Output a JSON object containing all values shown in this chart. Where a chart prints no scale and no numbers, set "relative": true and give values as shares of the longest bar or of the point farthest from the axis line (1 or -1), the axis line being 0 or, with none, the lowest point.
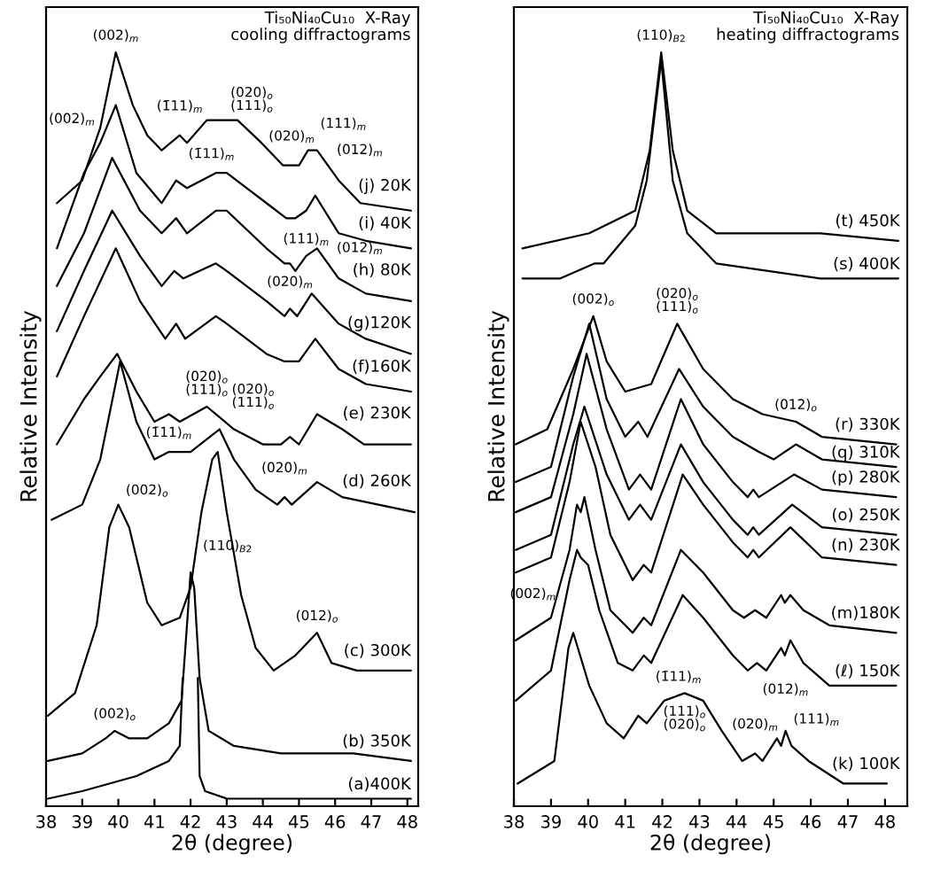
{
  "chart_data": [
    {
      "type": "line",
      "title": "Ti₅₀Ni₄₀Cu₁₀  X-Ray\ncooling diffractograms",
      "xlabel": "2θ (degree)",
      "ylabel": "Relative Intensity",
      "relative": true,
      "xlim": [
        38,
        48.3
      ],
      "xticks": [
        38,
        39,
        40,
        41,
        42,
        43,
        44,
        45,
        46,
        47,
        48
      ],
      "series": [
        {
          "name": "(j) 20K",
          "color": "#000000",
          "x": [
            38.3,
            39.0,
            39.5,
            39.93,
            40.4,
            40.8,
            41.2,
            41.7,
            41.9,
            42.45,
            42.9,
            43.3,
            43.96,
            44.56,
            44.7,
            44.8,
            45.0,
            45.25,
            45.5,
            46.1,
            46.7,
            48.1
          ],
          "values": [
            0.8,
            0.83,
            0.9,
            1.0,
            0.93,
            0.89,
            0.87,
            0.89,
            0.88,
            0.91,
            0.91,
            0.91,
            0.88,
            0.85,
            0.85,
            0.85,
            0.85,
            0.87,
            0.87,
            0.83,
            0.8,
            0.79
          ]
        },
        {
          "name": "(i) 40K",
          "color": "#000000",
          "x": [
            38.3,
            39.05,
            39.5,
            39.93,
            40.5,
            41.2,
            41.6,
            41.9,
            42.7,
            43.0,
            44.1,
            44.65,
            44.75,
            44.9,
            45.2,
            45.45,
            46.1,
            46.85,
            48.1
          ],
          "values": [
            0.74,
            0.84,
            0.88,
            0.93,
            0.84,
            0.8,
            0.83,
            0.82,
            0.84,
            0.84,
            0.8,
            0.78,
            0.78,
            0.78,
            0.79,
            0.81,
            0.76,
            0.75,
            0.74
          ]
        },
        {
          "name": "(h) 80K",
          "color": "#000000",
          "x": [
            38.3,
            39.05,
            39.83,
            40.6,
            41.2,
            41.6,
            41.9,
            42.7,
            43.0,
            44.1,
            44.6,
            44.75,
            44.9,
            45.2,
            45.5,
            46.1,
            46.85,
            48.1
          ],
          "values": [
            0.69,
            0.76,
            0.86,
            0.79,
            0.76,
            0.78,
            0.76,
            0.79,
            0.79,
            0.74,
            0.72,
            0.72,
            0.71,
            0.73,
            0.74,
            0.7,
            0.68,
            0.67
          ]
        },
        {
          "name": "(g)120K",
          "color": "#000000",
          "x": [
            38.3,
            39.05,
            39.83,
            40.6,
            41.2,
            41.55,
            41.8,
            42.7,
            43.0,
            44.1,
            44.6,
            44.75,
            44.95,
            45.35,
            46.1,
            46.85,
            48.1
          ],
          "values": [
            0.63,
            0.71,
            0.79,
            0.73,
            0.69,
            0.71,
            0.7,
            0.72,
            0.71,
            0.67,
            0.65,
            0.66,
            0.65,
            0.68,
            0.64,
            0.62,
            0.6
          ]
        },
        {
          "name": "(f)160K",
          "color": "#000000",
          "x": [
            38.3,
            39.05,
            39.93,
            40.6,
            41.3,
            41.6,
            41.85,
            42.7,
            43.0,
            44.1,
            44.6,
            44.8,
            45.0,
            45.45,
            46.1,
            46.85,
            48.1
          ],
          "values": [
            0.57,
            0.65,
            0.74,
            0.67,
            0.62,
            0.64,
            0.62,
            0.65,
            0.64,
            0.6,
            0.59,
            0.59,
            0.59,
            0.62,
            0.58,
            0.56,
            0.55
          ]
        },
        {
          "name": "(e) 230K",
          "color": "#000000",
          "x": [
            38.3,
            39.05,
            39.5,
            39.97,
            40.5,
            41.0,
            41.4,
            41.7,
            42.45,
            43.2,
            44.0,
            44.5,
            44.75,
            45.0,
            45.5,
            46.2,
            46.8,
            48.1
          ],
          "values": [
            0.48,
            0.54,
            0.57,
            0.6,
            0.55,
            0.51,
            0.52,
            0.51,
            0.53,
            0.5,
            0.48,
            0.48,
            0.49,
            0.48,
            0.52,
            0.5,
            0.48,
            0.48
          ]
        },
        {
          "name": "(d) 260K",
          "color": "#000000",
          "x": [
            38.15,
            39.0,
            39.5,
            40.05,
            40.5,
            41.0,
            41.4,
            41.6,
            42.0,
            42.8,
            43.2,
            43.8,
            44.4,
            44.6,
            44.8,
            45.5,
            46.2,
            48.2
          ],
          "values": [
            0.38,
            0.4,
            0.46,
            0.59,
            0.51,
            0.46,
            0.47,
            0.47,
            0.47,
            0.5,
            0.46,
            0.42,
            0.4,
            0.41,
            0.4,
            0.43,
            0.41,
            0.39
          ]
        },
        {
          "name": "(c) 300K",
          "color": "#000000",
          "x": [
            38.05,
            38.8,
            39.4,
            39.75,
            40.0,
            40.3,
            40.8,
            41.2,
            41.7,
            42.0,
            42.3,
            42.6,
            42.75,
            43.0,
            43.4,
            43.8,
            44.3,
            44.9,
            45.5,
            45.9,
            46.6,
            48.1
          ],
          "values": [
            0.12,
            0.15,
            0.24,
            0.37,
            0.4,
            0.37,
            0.27,
            0.24,
            0.25,
            0.29,
            0.39,
            0.46,
            0.47,
            0.39,
            0.28,
            0.21,
            0.18,
            0.2,
            0.23,
            0.19,
            0.18,
            0.18
          ]
        },
        {
          "name": "(b) 350K",
          "color": "#000000",
          "x": [
            38.05,
            39.0,
            39.65,
            39.9,
            40.3,
            40.8,
            41.4,
            41.75,
            41.9,
            42.0,
            42.1,
            42.25,
            42.5,
            43.2,
            44.5,
            45.5,
            46.5,
            48.1
          ],
          "values": [
            0.06,
            0.07,
            0.09,
            0.1,
            0.09,
            0.09,
            0.11,
            0.14,
            0.24,
            0.31,
            0.29,
            0.17,
            0.1,
            0.08,
            0.07,
            0.07,
            0.07,
            0.06
          ]
        },
        {
          "name": "(a)400K",
          "color": "#000000",
          "x": [
            38.05,
            39.0,
            40.5,
            41.4,
            41.7,
            41.78,
            42.0,
            42.2,
            42.25,
            42.4,
            43.0,
            44.0,
            48.1
          ],
          "values": [
            0.01,
            0.02,
            0.04,
            0.06,
            0.08,
            0.17,
            null,
            0.17,
            0.04,
            0.02,
            0.01,
            0.01,
            0.01
          ]
        }
      ],
      "annotations": [
        {
          "text": "(002)$_{m}$",
          "x": 39.93,
          "y": 1.0
        },
        {
          "text": "(1̄11)$_{m}$",
          "x": 41.7,
          "y": 0.89
        },
        {
          "text": "(020)$_{o}$\n(111)$_{o}$",
          "x": 42.9,
          "y": 0.91
        },
        {
          "text": "(020)$_{m}$",
          "x": 44.8,
          "y": 0.85
        },
        {
          "text": "(111)$_{m}$",
          "x": 45.25,
          "y": 0.87
        },
        {
          "text": "(012)$_{m}$",
          "x": 45.5,
          "y": 0.87
        },
        {
          "text": "(002)$_{m}$",
          "x": 39.83,
          "y": 0.86
        },
        {
          "text": "(1̄11)$_{m}$",
          "x": 41.6,
          "y": 0.83
        },
        {
          "text": "(020)$_{m}$",
          "x": 44.75,
          "y": 0.72
        },
        {
          "text": "(111)$_{m}$",
          "x": 45.2,
          "y": 0.73
        },
        {
          "text": "(012)$_{m}$",
          "x": 45.5,
          "y": 0.74
        },
        {
          "text": "(020)$_{o}$\n(111)$_{o}$",
          "x": 42.45,
          "y": 0.53
        },
        {
          "text": "(1̄11)$_{m}$",
          "x": 41.4,
          "y": 0.52
        },
        {
          "text": "(020)$_{o}$\n(111)$_{o}$",
          "x": 42.8,
          "y": 0.5
        },
        {
          "text": "(020)$_{m}$",
          "x": 44.6,
          "y": 0.41
        },
        {
          "text": "(002)$_{o}$",
          "x": 40.0,
          "y": 0.4
        },
        {
          "text": "(110)$_{B2}$",
          "x": 42.0,
          "y": 0.31
        },
        {
          "text": "(012)$_{o}$",
          "x": 45.5,
          "y": 0.23
        },
        {
          "text": "(002)$_{o}$",
          "x": 39.9,
          "y": 0.1
        }
      ]
    },
    {
      "type": "line",
      "title": "Ti₅₀Ni₄₀Cu₁₀  X-Ray\nheating diffractograms",
      "xlabel": "2θ (degree)",
      "ylabel": "Relative Intensity",
      "relative": true,
      "xlim": [
        38,
        48.6
      ],
      "xticks": [
        38,
        39,
        40,
        41,
        42,
        43,
        44,
        45,
        46,
        47,
        48
      ],
      "series": [
        {
          "name": "(t) 450K",
          "color": "#000000",
          "x": [
            38.23,
            40.03,
            41.27,
            41.66,
            41.97,
            42.28,
            42.67,
            43.45,
            46.26,
            48.36
          ],
          "values": [
            0.74,
            0.76,
            0.79,
            0.87,
            1.0,
            0.87,
            0.79,
            0.76,
            0.76,
            0.75
          ]
        },
        {
          "name": "(s) 400K",
          "color": "#000000",
          "x": [
            38.23,
            39.25,
            40.18,
            40.42,
            41.27,
            41.58,
            41.97,
            42.28,
            42.67,
            43.45,
            46.26,
            48.36
          ],
          "values": [
            0.7,
            0.7,
            0.72,
            0.72,
            0.77,
            0.83,
            0.99,
            0.83,
            0.76,
            0.72,
            0.7,
            0.7
          ]
        },
        {
          "name": "(r) 330K",
          "color": "#000000",
          "x": [
            38.05,
            38.9,
            39.6,
            40.14,
            40.5,
            41.0,
            41.7,
            42.4,
            43.1,
            43.9,
            44.7,
            45.6,
            46.3,
            48.3
          ],
          "values": [
            0.48,
            0.5,
            0.58,
            0.65,
            0.59,
            0.55,
            0.56,
            0.64,
            0.58,
            0.54,
            0.52,
            0.51,
            0.49,
            0.48
          ]
        },
        {
          "name": "(q) 310K",
          "color": "#000000",
          "x": [
            38.05,
            39.0,
            39.6,
            40.03,
            40.5,
            41.0,
            41.35,
            41.6,
            42.45,
            43.1,
            43.9,
            44.6,
            45.0,
            45.6,
            46.3,
            48.3
          ],
          "values": [
            0.43,
            0.45,
            0.57,
            0.64,
            0.54,
            0.49,
            0.51,
            0.49,
            0.58,
            0.53,
            0.49,
            0.47,
            0.46,
            0.48,
            0.46,
            0.45
          ]
        },
        {
          "name": "(p) 280K",
          "color": "#000000",
          "x": [
            38.05,
            39.0,
            39.6,
            39.96,
            40.5,
            41.1,
            41.4,
            41.7,
            42.5,
            43.1,
            43.9,
            44.3,
            44.45,
            44.6,
            45.55,
            46.3,
            48.3
          ],
          "values": [
            0.39,
            0.41,
            0.52,
            0.6,
            0.5,
            0.42,
            0.44,
            0.42,
            0.54,
            0.48,
            0.43,
            0.41,
            0.42,
            0.41,
            0.44,
            0.42,
            0.41
          ]
        },
        {
          "name": "(o) 250K",
          "color": "#000000",
          "x": [
            38.05,
            39.0,
            39.6,
            39.9,
            40.5,
            41.1,
            41.4,
            41.7,
            42.5,
            43.1,
            43.9,
            44.3,
            44.45,
            44.6,
            45.5,
            46.3,
            48.3
          ],
          "values": [
            0.34,
            0.36,
            0.48,
            0.53,
            0.44,
            0.38,
            0.4,
            0.38,
            0.48,
            0.43,
            0.38,
            0.36,
            0.37,
            0.36,
            0.4,
            0.37,
            0.36
          ]
        },
        {
          "name": "(n) 230K",
          "color": "#000000",
          "x": [
            38.05,
            39.0,
            39.5,
            39.8,
            40.2,
            40.6,
            41.2,
            41.5,
            41.7,
            42.55,
            43.1,
            43.9,
            44.3,
            44.45,
            44.6,
            45.45,
            46.3,
            48.3
          ],
          "values": [
            0.31,
            0.33,
            0.43,
            0.51,
            0.45,
            0.36,
            0.3,
            0.32,
            0.31,
            0.44,
            0.4,
            0.35,
            0.33,
            0.34,
            0.33,
            0.37,
            0.33,
            0.32
          ]
        },
        {
          "name": "(m)180K",
          "color": "#000000",
          "x": [
            38.05,
            39.0,
            39.5,
            39.7,
            39.8,
            39.9,
            40.2,
            40.6,
            41.2,
            41.5,
            41.7,
            42.5,
            43.1,
            43.9,
            44.2,
            44.5,
            44.8,
            45.2,
            45.3,
            45.45,
            45.8,
            46.5,
            48.3
          ],
          "values": [
            0.22,
            0.25,
            0.34,
            0.4,
            0.39,
            0.41,
            0.34,
            0.26,
            0.23,
            0.25,
            0.24,
            0.34,
            0.31,
            0.26,
            0.25,
            0.26,
            0.25,
            0.28,
            0.27,
            0.28,
            0.26,
            0.24,
            0.23
          ]
        },
        {
          "name": "(ℓ) 150K",
          "color": "#000000",
          "x": [
            38.05,
            39.0,
            39.5,
            39.7,
            39.8,
            40.0,
            40.3,
            40.8,
            41.2,
            41.5,
            41.7,
            42.55,
            43.1,
            43.9,
            44.3,
            44.55,
            44.8,
            45.2,
            45.3,
            45.45,
            45.8,
            46.5,
            48.3
          ],
          "values": [
            0.14,
            0.18,
            0.3,
            0.34,
            0.33,
            0.32,
            0.26,
            0.19,
            0.18,
            0.2,
            0.19,
            0.28,
            0.25,
            0.2,
            0.18,
            0.19,
            0.18,
            0.21,
            0.2,
            0.22,
            0.19,
            0.16,
            0.16
          ]
        },
        {
          "name": "(k) 100K",
          "color": "#000000",
          "x": [
            38.1,
            39.09,
            39.47,
            39.6,
            40.03,
            40.5,
            40.96,
            41.35,
            41.58,
            42.05,
            42.6,
            43.1,
            43.6,
            44.15,
            44.5,
            44.7,
            45.09,
            45.2,
            45.32,
            45.48,
            45.94,
            46.88,
            48.05
          ],
          "values": [
            0.03,
            0.06,
            0.21,
            0.23,
            0.16,
            0.11,
            0.09,
            0.12,
            0.11,
            0.14,
            0.15,
            0.14,
            0.1,
            0.06,
            0.07,
            0.06,
            0.09,
            0.08,
            0.1,
            0.08,
            0.06,
            0.03,
            0.03
          ]
        }
      ],
      "annotations": [
        {
          "text": "(110)$_{B2}$",
          "x": 41.97,
          "y": 1.0
        },
        {
          "text": "(002)$_{o}$",
          "x": 40.14,
          "y": 0.65
        },
        {
          "text": "(020)$_{o}$\n(111)$_{o}$",
          "x": 42.4,
          "y": 0.64
        },
        {
          "text": "(012)$_{o}$",
          "x": 45.6,
          "y": 0.51
        },
        {
          "text": "(002)$_{m}$",
          "x": 39.6,
          "y": 0.23
        },
        {
          "text": "(1̄11)$_{m}$",
          "x": 41.35,
          "y": 0.12
        },
        {
          "text": "(111)$_{o}$\n(020)$_{o}$",
          "x": 42.6,
          "y": 0.15
        },
        {
          "text": "(020)$_{m}$",
          "x": 44.5,
          "y": 0.07
        },
        {
          "text": "(111)$_{m}$",
          "x": 45.2,
          "y": 0.08
        },
        {
          "text": "(012)$_{m}$",
          "x": 45.32,
          "y": 0.1
        }
      ]
    }
  ]
}
